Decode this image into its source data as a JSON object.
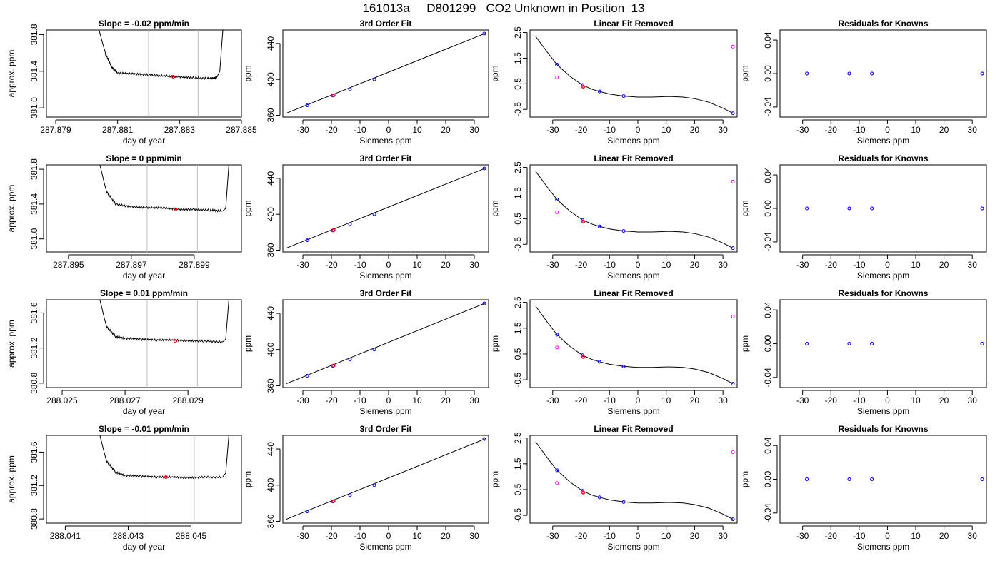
{
  "figure_title": "161013a     D801299   CO2 Unknown in Position  13",
  "colors": {
    "line": "#000000",
    "known_point": "#0000ff",
    "unknown_point": "#ff0000",
    "alt_point": "#ff00ff",
    "window_line": "#bebebe"
  },
  "chart_data": [
    {
      "type": "line",
      "title": "Slope =  -0.02  ppm/min",
      "xlabel": "day of year",
      "ylabel": "approx. ppm",
      "x_ticks": [
        "287.879",
        "287.881",
        "287.883",
        "287.885"
      ],
      "y_ticks": [
        "381.0",
        "381.4",
        "381.8"
      ],
      "xlim": [
        287.8787,
        287.885
      ],
      "ylim": [
        380.9,
        381.85
      ],
      "series": [
        {
          "x": [
            287.8804,
            287.8806,
            287.8808,
            287.881,
            287.8815,
            287.882,
            287.8825,
            287.883,
            287.8835,
            287.884,
            287.8842,
            287.8843,
            287.8844
          ],
          "values": [
            381.85,
            381.6,
            381.45,
            381.38,
            381.37,
            381.36,
            381.35,
            381.34,
            381.33,
            381.32,
            381.33,
            381.4,
            381.85
          ]
        }
      ],
      "vlines": [
        287.882,
        287.8836
      ],
      "unknown_point": {
        "x": 287.8828,
        "y": 381.34
      }
    },
    {
      "type": "scatter",
      "title": "3rd Order Fit",
      "xlabel": "Siemens ppm",
      "ylabel": "ppm",
      "x_ticks": [
        "-30",
        "-20",
        "-10",
        "0",
        "10",
        "20",
        "30"
      ],
      "y_ticks": [
        "360",
        "400",
        "440"
      ],
      "xlim": [
        -37,
        35
      ],
      "ylim": [
        358,
        455
      ],
      "fit_line": {
        "x": [
          -36,
          34
        ],
        "values": [
          362,
          451.5
        ]
      },
      "known_points": {
        "x": [
          -28.5,
          -19.5,
          -13.5,
          -5,
          33.5
        ],
        "values": [
          371,
          382,
          389,
          400,
          451
        ]
      },
      "unknown_point": {
        "x": -19.2,
        "y": 382.3
      }
    },
    {
      "type": "scatter",
      "title": "Linear Fit Removed",
      "xlabel": "Siemens ppm",
      "ylabel": "ppm",
      "x_ticks": [
        "-30",
        "-20",
        "-10",
        "0",
        "10",
        "20",
        "30"
      ],
      "y_ticks": [
        "-0.5",
        "0.5",
        "1.5",
        "2.5"
      ],
      "xlim": [
        -38,
        35
      ],
      "ylim": [
        -0.8,
        2.6
      ],
      "curve": {
        "x": [
          -36,
          -32,
          -28.5,
          -24,
          -19.5,
          -16,
          -13.5,
          -10,
          -5,
          0,
          5,
          10,
          12,
          16,
          20,
          25,
          30,
          33.5
        ],
        "values": [
          2.35,
          1.75,
          1.25,
          0.8,
          0.45,
          0.28,
          0.2,
          0.1,
          0.02,
          -0.02,
          -0.02,
          0.0,
          0.0,
          -0.02,
          -0.08,
          -0.22,
          -0.45,
          -0.65
        ]
      },
      "known_points": {
        "x": [
          -28.5,
          -19.5,
          -13.5,
          -5,
          33.5
        ],
        "values": [
          1.25,
          0.45,
          0.2,
          0.02,
          -0.65
        ]
      },
      "alt_points": {
        "x": [
          -28.5,
          -19.5,
          33.5
        ],
        "values": [
          0.75,
          0.4,
          1.95
        ]
      },
      "unknown_point": {
        "x": -19.2,
        "y": 0.38
      }
    },
    {
      "type": "scatter",
      "title": "Residuals for Knowns",
      "xlabel": "Siemens ppm",
      "ylabel": "ppm",
      "x_ticks": [
        "-30",
        "-20",
        "-10",
        "0",
        "10",
        "20",
        "30"
      ],
      "y_ticks": [
        "-0.04",
        "0.00",
        "0.04"
      ],
      "xlim": [
        -38,
        35
      ],
      "ylim": [
        -0.052,
        0.052
      ],
      "known_points": {
        "x": [
          -28.5,
          -13.5,
          -5.5,
          33.5
        ],
        "values": [
          0,
          0,
          0,
          0
        ]
      },
      "alt_points": {
        "x": [
          -28.5,
          -13.5,
          -5.5,
          33.5
        ],
        "values": [
          0,
          0,
          0,
          0
        ]
      }
    },
    {
      "type": "line",
      "title": "Slope =  0  ppm/min",
      "xlabel": "day of year",
      "ylabel": "approx. ppm",
      "x_ticks": [
        "287.895",
        "287.897",
        "287.899"
      ],
      "y_ticks": [
        "381.0",
        "381.4",
        "381.8"
      ],
      "xlim": [
        287.8943,
        287.9005
      ],
      "ylim": [
        380.85,
        381.85
      ],
      "series": [
        {
          "x": [
            287.896,
            287.8962,
            287.8965,
            287.897,
            287.8975,
            287.898,
            287.8985,
            287.899,
            287.8995,
            287.8999,
            287.9,
            287.9001
          ],
          "values": [
            381.85,
            381.55,
            381.4,
            381.37,
            381.36,
            381.36,
            381.34,
            381.34,
            381.33,
            381.32,
            381.35,
            381.85
          ]
        }
      ],
      "vlines": [
        287.8975,
        287.8991
      ],
      "unknown_point": {
        "x": 287.8984,
        "y": 381.34
      }
    },
    {
      "type": "scatter",
      "title": "3rd Order Fit",
      "xlabel": "Siemens ppm",
      "ylabel": "ppm",
      "x_ticks": [
        "-30",
        "-20",
        "-10",
        "0",
        "10",
        "20",
        "30"
      ],
      "y_ticks": [
        "360",
        "400",
        "440"
      ],
      "xlim": [
        -37,
        35
      ],
      "ylim": [
        358,
        455
      ],
      "fit_line": {
        "x": [
          -36,
          34
        ],
        "values": [
          362,
          451.5
        ]
      },
      "known_points": {
        "x": [
          -28.5,
          -19.5,
          -13.5,
          -5,
          33.5
        ],
        "values": [
          371,
          382,
          389,
          400,
          451
        ]
      },
      "unknown_point": {
        "x": -19.2,
        "y": 382.3
      }
    },
    {
      "type": "scatter",
      "title": "Linear Fit Removed",
      "xlabel": "Siemens ppm",
      "ylabel": "ppm",
      "x_ticks": [
        "-30",
        "-20",
        "-10",
        "0",
        "10",
        "20",
        "30"
      ],
      "y_ticks": [
        "-0.5",
        "0.5",
        "1.5",
        "2.5"
      ],
      "xlim": [
        -38,
        35
      ],
      "ylim": [
        -0.8,
        2.6
      ],
      "curve": {
        "x": [
          -36,
          -32,
          -28.5,
          -24,
          -19.5,
          -16,
          -13.5,
          -10,
          -5,
          0,
          5,
          10,
          12,
          16,
          20,
          25,
          30,
          33.5
        ],
        "values": [
          2.35,
          1.75,
          1.25,
          0.8,
          0.45,
          0.28,
          0.2,
          0.1,
          0.02,
          -0.02,
          -0.02,
          0.0,
          0.0,
          -0.02,
          -0.08,
          -0.22,
          -0.45,
          -0.65
        ]
      },
      "known_points": {
        "x": [
          -28.5,
          -19.5,
          -13.5,
          -5,
          33.5
        ],
        "values": [
          1.25,
          0.45,
          0.2,
          0.02,
          -0.65
        ]
      },
      "alt_points": {
        "x": [
          -28.5,
          -19.5,
          33.5
        ],
        "values": [
          0.75,
          0.4,
          1.95
        ]
      },
      "unknown_point": {
        "x": -19.2,
        "y": 0.38
      }
    },
    {
      "type": "scatter",
      "title": "Residuals for Knowns",
      "xlabel": "Siemens ppm",
      "ylabel": "ppm",
      "x_ticks": [
        "-30",
        "-20",
        "-10",
        "0",
        "10",
        "20",
        "30"
      ],
      "y_ticks": [
        "-0.04",
        "0.00",
        "0.04"
      ],
      "xlim": [
        -38,
        35
      ],
      "ylim": [
        -0.052,
        0.052
      ],
      "known_points": {
        "x": [
          -28.5,
          -13.5,
          -5.5,
          33.5
        ],
        "values": [
          0,
          0,
          0,
          0
        ]
      },
      "alt_points": {
        "x": [
          -28.5,
          -13.5,
          -5.5,
          33.5
        ],
        "values": [
          0,
          0,
          0,
          0
        ]
      }
    },
    {
      "type": "line",
      "title": "Slope =  0.01  ppm/min",
      "xlabel": "day of year",
      "ylabel": "approx. ppm",
      "x_ticks": [
        "288.025",
        "288.027",
        "288.029"
      ],
      "y_ticks": [
        "380.8",
        "381.2",
        "381.6"
      ],
      "xlim": [
        288.0245,
        288.0307
      ],
      "ylim": [
        380.75,
        381.75
      ],
      "series": [
        {
          "x": [
            288.0262,
            288.0264,
            288.0267,
            288.027,
            288.0275,
            288.028,
            288.0285,
            288.029,
            288.0295,
            288.0301,
            288.0302,
            288.0303
          ],
          "values": [
            381.75,
            381.45,
            381.33,
            381.31,
            381.3,
            381.29,
            381.29,
            381.28,
            381.28,
            381.27,
            381.3,
            381.75
          ]
        }
      ],
      "vlines": [
        288.0277,
        288.0293
      ],
      "unknown_point": {
        "x": 288.0286,
        "y": 381.28
      }
    },
    {
      "type": "scatter",
      "title": "3rd Order Fit",
      "xlabel": "Siemens ppm",
      "ylabel": "ppm",
      "x_ticks": [
        "-30",
        "-20",
        "-10",
        "0",
        "10",
        "20",
        "30"
      ],
      "y_ticks": [
        "360",
        "400",
        "440"
      ],
      "xlim": [
        -37,
        35
      ],
      "ylim": [
        358,
        455
      ],
      "fit_line": {
        "x": [
          -36,
          34
        ],
        "values": [
          362,
          451.5
        ]
      },
      "known_points": {
        "x": [
          -28.5,
          -19.5,
          -13.5,
          -5,
          33.5
        ],
        "values": [
          371,
          382,
          389,
          400,
          451
        ]
      },
      "unknown_point": {
        "x": -19.2,
        "y": 382.3
      }
    },
    {
      "type": "scatter",
      "title": "Linear Fit Removed",
      "xlabel": "Siemens ppm",
      "ylabel": "ppm",
      "x_ticks": [
        "-30",
        "-20",
        "-10",
        "0",
        "10",
        "20",
        "30"
      ],
      "y_ticks": [
        "-0.5",
        "0.5",
        "1.5",
        "2.5"
      ],
      "xlim": [
        -38,
        35
      ],
      "ylim": [
        -0.8,
        2.6
      ],
      "curve": {
        "x": [
          -36,
          -32,
          -28.5,
          -24,
          -19.5,
          -16,
          -13.5,
          -10,
          -5,
          0,
          5,
          10,
          12,
          16,
          20,
          25,
          30,
          33.5
        ],
        "values": [
          2.35,
          1.75,
          1.25,
          0.8,
          0.45,
          0.28,
          0.2,
          0.1,
          0.02,
          -0.02,
          -0.02,
          0.0,
          0.0,
          -0.02,
          -0.08,
          -0.22,
          -0.45,
          -0.65
        ]
      },
      "known_points": {
        "x": [
          -28.5,
          -19.5,
          -13.5,
          -5,
          33.5
        ],
        "values": [
          1.25,
          0.45,
          0.2,
          0.02,
          -0.65
        ]
      },
      "alt_points": {
        "x": [
          -28.5,
          -19.5,
          33.5
        ],
        "values": [
          0.75,
          0.4,
          1.95
        ]
      },
      "unknown_point": {
        "x": -19.2,
        "y": 0.38
      }
    },
    {
      "type": "scatter",
      "title": "Residuals for Knowns",
      "xlabel": "Siemens ppm",
      "ylabel": "ppm",
      "x_ticks": [
        "-30",
        "-20",
        "-10",
        "0",
        "10",
        "20",
        "30"
      ],
      "y_ticks": [
        "-0.04",
        "0.00",
        "0.04"
      ],
      "xlim": [
        -38,
        35
      ],
      "ylim": [
        -0.052,
        0.052
      ],
      "known_points": {
        "x": [
          -28.5,
          -13.5,
          -5.5,
          33.5
        ],
        "values": [
          0,
          0,
          0,
          0
        ]
      },
      "alt_points": {
        "x": [
          -28.5,
          -13.5,
          -5.5,
          33.5
        ],
        "values": [
          0,
          0,
          0,
          0
        ]
      }
    },
    {
      "type": "line",
      "title": "Slope =  -0.01  ppm/min",
      "xlabel": "day of year",
      "ylabel": "approx. ppm",
      "x_ticks": [
        "288.041",
        "288.043",
        "288.045"
      ],
      "y_ticks": [
        "380.8",
        "381.2",
        "381.6"
      ],
      "xlim": [
        288.0404,
        288.0466
      ],
      "ylim": [
        380.75,
        381.8
      ],
      "series": [
        {
          "x": [
            288.0421,
            288.0423,
            288.0426,
            288.0429,
            288.0434,
            288.0439,
            288.0444,
            288.0449,
            288.0454,
            288.046,
            288.0461,
            288.0462
          ],
          "values": [
            381.8,
            381.5,
            381.36,
            381.32,
            381.31,
            381.3,
            381.3,
            381.29,
            381.3,
            381.3,
            381.35,
            381.8
          ]
        }
      ],
      "vlines": [
        288.0435,
        288.0451
      ],
      "unknown_point": {
        "x": 288.0442,
        "y": 381.3
      }
    },
    {
      "type": "scatter",
      "title": "3rd Order Fit",
      "xlabel": "Siemens ppm",
      "ylabel": "ppm",
      "x_ticks": [
        "-30",
        "-20",
        "-10",
        "0",
        "10",
        "20",
        "30"
      ],
      "y_ticks": [
        "360",
        "400",
        "440"
      ],
      "xlim": [
        -37,
        35
      ],
      "ylim": [
        358,
        455
      ],
      "fit_line": {
        "x": [
          -36,
          34
        ],
        "values": [
          362,
          451.5
        ]
      },
      "known_points": {
        "x": [
          -28.5,
          -19.5,
          -13.5,
          -5,
          33.5
        ],
        "values": [
          371,
          382,
          389,
          400,
          451
        ]
      },
      "unknown_point": {
        "x": -19.2,
        "y": 382.3
      }
    },
    {
      "type": "scatter",
      "title": "Linear Fit Removed",
      "xlabel": "Siemens ppm",
      "ylabel": "ppm",
      "x_ticks": [
        "-30",
        "-20",
        "-10",
        "0",
        "10",
        "20",
        "30"
      ],
      "y_ticks": [
        "-0.5",
        "0.5",
        "1.5",
        "2.5"
      ],
      "xlim": [
        -38,
        35
      ],
      "ylim": [
        -0.8,
        2.6
      ],
      "curve": {
        "x": [
          -36,
          -32,
          -28.5,
          -24,
          -19.5,
          -16,
          -13.5,
          -10,
          -5,
          0,
          5,
          10,
          12,
          16,
          20,
          25,
          30,
          33.5
        ],
        "values": [
          2.35,
          1.75,
          1.25,
          0.8,
          0.45,
          0.28,
          0.2,
          0.1,
          0.02,
          -0.02,
          -0.02,
          0.0,
          0.0,
          -0.02,
          -0.08,
          -0.22,
          -0.45,
          -0.65
        ]
      },
      "known_points": {
        "x": [
          -28.5,
          -19.5,
          -13.5,
          -5,
          33.5
        ],
        "values": [
          1.25,
          0.45,
          0.2,
          0.02,
          -0.65
        ]
      },
      "alt_points": {
        "x": [
          -28.5,
          -19.5,
          33.5
        ],
        "values": [
          0.75,
          0.4,
          1.95
        ]
      },
      "unknown_point": {
        "x": -19.2,
        "y": 0.38
      }
    },
    {
      "type": "scatter",
      "title": "Residuals for Knowns",
      "xlabel": "Siemens ppm",
      "ylabel": "ppm",
      "x_ticks": [
        "-30",
        "-20",
        "-10",
        "0",
        "10",
        "20",
        "30"
      ],
      "y_ticks": [
        "-0.04",
        "0.00",
        "0.04"
      ],
      "xlim": [
        -38,
        35
      ],
      "ylim": [
        -0.052,
        0.052
      ],
      "known_points": {
        "x": [
          -28.5,
          -13.5,
          -5.5,
          33.5
        ],
        "values": [
          0,
          0,
          0,
          0
        ]
      },
      "alt_points": {
        "x": [
          -28.5,
          -13.5,
          -5.5,
          33.5
        ],
        "values": [
          0,
          0,
          0,
          0
        ]
      }
    }
  ]
}
